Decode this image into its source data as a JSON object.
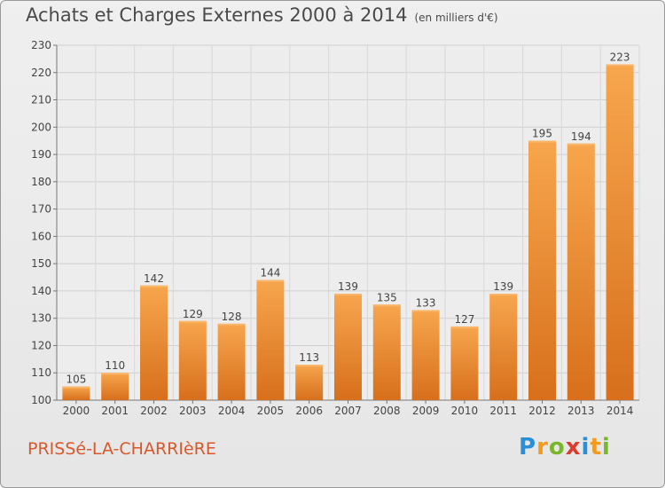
{
  "header": {
    "title": "Achats et Charges Externes 2000 à 2014",
    "subtitle": "(en milliers d'€)"
  },
  "footer": {
    "commune": "PRISSé-LA-CHARRIèRE",
    "logo_letters": [
      "P",
      "r",
      "o",
      "x",
      "i",
      "t",
      "i"
    ],
    "logo_colors": [
      "#2b8fd6",
      "#f29b1d",
      "#7ab62a",
      "#e03a2f",
      "#2b8fd6",
      "#f29b1d",
      "#7ab62a"
    ]
  },
  "chart_data": {
    "type": "bar",
    "title": "Achats et Charges Externes 2000 à 2014",
    "subtitle": "(en milliers d'€)",
    "categories": [
      "2000",
      "2001",
      "2002",
      "2003",
      "2004",
      "2005",
      "2006",
      "2007",
      "2008",
      "2009",
      "2010",
      "2011",
      "2012",
      "2013",
      "2014"
    ],
    "values": [
      105,
      110,
      142,
      129,
      128,
      144,
      113,
      139,
      135,
      133,
      127,
      139,
      195,
      194,
      223
    ],
    "ylim": [
      100,
      230
    ],
    "yticks": [
      100,
      110,
      120,
      130,
      140,
      150,
      160,
      170,
      180,
      190,
      200,
      210,
      220,
      230
    ],
    "xlabel": "",
    "ylabel": "",
    "grid": true,
    "bar_color": "#f0933a",
    "bar_color_dark": "#d9731f"
  }
}
